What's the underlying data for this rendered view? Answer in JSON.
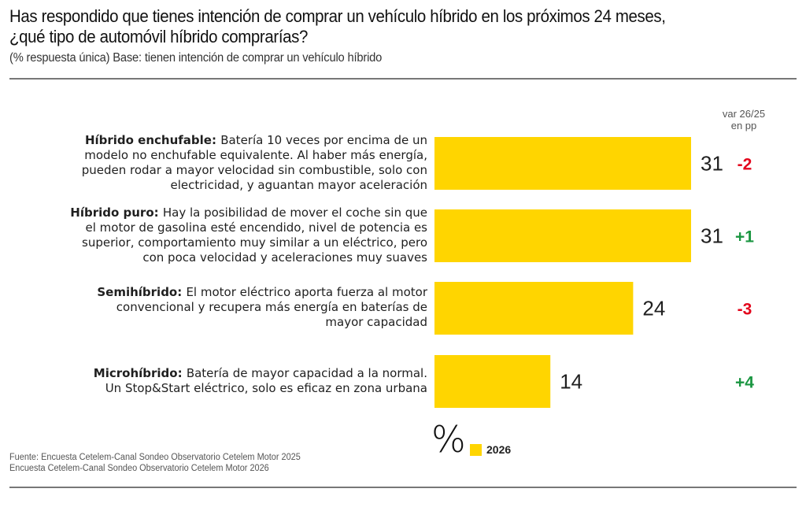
{
  "header": {
    "title_line1": "Has respondido que tienes intención de comprar un vehículo híbrido en los próximos 24 meses,",
    "title_line2": "¿qué tipo de automóvil híbrido comprarías?",
    "subtitle": "(% respuesta única) Base: tienen intención de comprar un vehículo híbrido"
  },
  "var_header": {
    "line1": "var 26/25",
    "line2": "en pp"
  },
  "colors": {
    "bar": "#FFD500",
    "positive": "#1a9641",
    "negative": "#e3061c",
    "value_text": "#1f1f1f"
  },
  "legend": {
    "symbol": "%",
    "label": "2026"
  },
  "source": {
    "line1": "Fuente: Encuesta Cetelem-Canal Sondeo Observatorio Cetelem Motor 2025",
    "line2": "Encuesta Cetelem-Canal Sondeo Observatorio Cetelem Motor 2026"
  },
  "chart_data": {
    "type": "bar",
    "orientation": "horizontal",
    "title": "¿qué tipo de automóvil híbrido comprarías?",
    "xlabel": "%",
    "ylabel": "",
    "xlim": [
      0,
      31
    ],
    "grid": false,
    "legend_position": "bottom",
    "categories": [
      "Híbrido enchufable",
      "Híbrido puro",
      "Semihíbrido",
      "Microhíbrido"
    ],
    "descriptions": [
      [
        "Batería 10 veces por encima de un",
        "modelo no enchufable equivalente. Al haber más energía,",
        "pueden rodar a mayor velocidad sin combustible, solo con",
        "electricidad, y aguantan mayor aceleración"
      ],
      [
        "Hay la posibilidad de mover el coche sin que",
        "el motor de gasolina esté encendido, nivel de potencia es",
        "superior, comportamiento muy similar a un eléctrico, pero",
        "con poca velocidad y aceleraciones muy suaves"
      ],
      [
        "El motor eléctrico aporta fuerza al motor",
        "convencional y recupera más energía en baterías de",
        "mayor capacidad"
      ],
      [
        "Batería de mayor capacidad a la normal.",
        "Un Stop&Start eléctrico, solo es eficaz en zona urbana"
      ]
    ],
    "series": [
      {
        "name": "2026",
        "values": [
          31,
          31,
          24,
          14
        ]
      }
    ],
    "variation_label": "var 26/25 en pp",
    "variation": [
      "-2",
      "+1",
      "-3",
      "+4"
    ]
  }
}
